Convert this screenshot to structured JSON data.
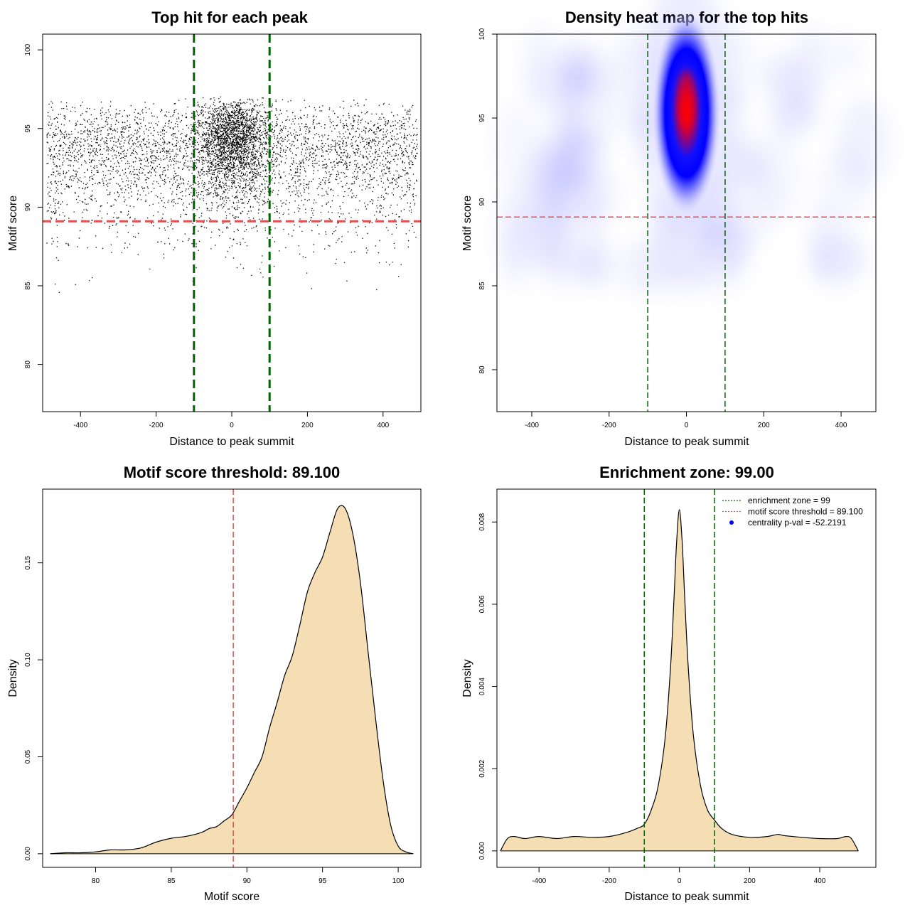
{
  "chart_data": [
    {
      "type": "scatter",
      "title": "Top hit for each peak",
      "xlabel": "Distance to peak summit",
      "ylabel": "Motif score",
      "xlim": [
        -500,
        500
      ],
      "ylim": [
        77,
        101
      ],
      "xticks": [
        -400,
        -200,
        0,
        200,
        400
      ],
      "yticks": [
        80,
        85,
        90,
        95,
        100
      ],
      "vlines": [
        -100,
        100
      ],
      "hline": 89.1,
      "vline_color": "#006400",
      "hline_color": "#e05050",
      "grid": false
    },
    {
      "type": "heatmap",
      "title": "Density heat map for the top hits",
      "xlabel": "Distance to peak summit",
      "ylabel": "Motif score",
      "xlim": [
        -490,
        490
      ],
      "ylim": [
        77.5,
        100
      ],
      "xticks": [
        -400,
        -200,
        0,
        200,
        400
      ],
      "yticks": [
        80,
        85,
        90,
        95,
        100
      ],
      "vlines": [
        -100,
        100
      ],
      "hline": 89.1,
      "peak": {
        "x": 0,
        "y": 96.2
      },
      "colors": [
        "#ffffff",
        "#0000ff",
        "#ff0000"
      ],
      "grid": false
    },
    {
      "type": "area",
      "title": "Motif score threshold: 89.100",
      "xlabel": "Motif score",
      "ylabel": "Density",
      "xlim": [
        76.5,
        101.5
      ],
      "ylim": [
        -0.007,
        0.188
      ],
      "xticks": [
        80,
        85,
        90,
        95,
        100
      ],
      "yticks": [
        0.0,
        0.05,
        0.1,
        0.15
      ],
      "ytick_labels": [
        "0.00",
        "0.05",
        "0.10",
        "0.15"
      ],
      "vline": 89.1,
      "fill": "#f5deb3",
      "x": [
        77,
        78,
        79,
        80,
        81,
        82,
        83,
        84,
        85,
        86,
        87,
        87.5,
        88,
        88.5,
        89,
        89.5,
        90,
        90.5,
        91,
        91.5,
        92,
        92.5,
        93,
        93.5,
        94,
        94.5,
        95,
        95.5,
        96,
        96.5,
        97,
        97.5,
        98,
        98.5,
        99,
        99.5,
        100,
        100.5,
        101
      ],
      "y": [
        0.0,
        0.0005,
        0.0005,
        0.001,
        0.002,
        0.002,
        0.003,
        0.006,
        0.008,
        0.009,
        0.011,
        0.013,
        0.014,
        0.017,
        0.02,
        0.027,
        0.034,
        0.042,
        0.05,
        0.065,
        0.078,
        0.092,
        0.102,
        0.118,
        0.135,
        0.145,
        0.153,
        0.166,
        0.178,
        0.178,
        0.165,
        0.14,
        0.105,
        0.07,
        0.038,
        0.015,
        0.004,
        0.001,
        0.0
      ]
    },
    {
      "type": "area",
      "title": "Enrichment zone: 99.00",
      "xlabel": "Distance to peak summit",
      "ylabel": "Density",
      "xlim": [
        -520,
        560
      ],
      "ylim": [
        -0.0004,
        0.0088
      ],
      "xticks": [
        -400,
        -200,
        0,
        200,
        400
      ],
      "yticks": [
        0.0,
        0.002,
        0.004,
        0.006,
        0.008
      ],
      "ytick_labels": [
        "0.000",
        "0.002",
        "0.004",
        "0.006",
        "0.008"
      ],
      "vlines": [
        -100,
        100
      ],
      "fill": "#f5deb3",
      "x": [
        -510,
        -490,
        -470,
        -440,
        -400,
        -350,
        -300,
        -250,
        -200,
        -150,
        -120,
        -100,
        -80,
        -60,
        -40,
        -25,
        -15,
        -8,
        0,
        8,
        15,
        25,
        40,
        60,
        80,
        100,
        120,
        150,
        200,
        250,
        280,
        300,
        350,
        400,
        450,
        475,
        490,
        510
      ],
      "y": [
        0.0,
        0.0003,
        0.00035,
        0.0003,
        0.00035,
        0.0003,
        0.00035,
        0.00033,
        0.00035,
        0.00045,
        0.00055,
        0.00065,
        0.001,
        0.0016,
        0.0028,
        0.0045,
        0.0062,
        0.0075,
        0.0083,
        0.0075,
        0.0062,
        0.0045,
        0.0028,
        0.0016,
        0.001,
        0.00075,
        0.00055,
        0.0004,
        0.00033,
        0.00035,
        0.0004,
        0.00037,
        0.00033,
        0.0003,
        0.0003,
        0.00035,
        0.0003,
        0.0
      ],
      "legend": [
        {
          "label": "enrichment zone = 99",
          "color": "#006400",
          "style": "dotted"
        },
        {
          "label": "motif score threshold = 89.100",
          "color": "#e05050",
          "style": "dotted"
        },
        {
          "label": "centrality p-val = -52.2191",
          "color": "#0000ff",
          "style": "point"
        }
      ],
      "legend_position": "top-right"
    }
  ]
}
